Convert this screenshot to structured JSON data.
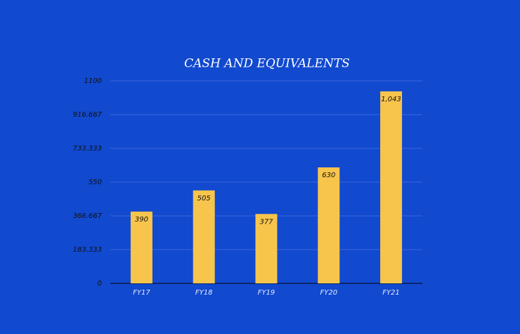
{
  "chart_data": {
    "type": "bar",
    "title": "CASH AND EQUIVALENTS",
    "categories": [
      "FY17",
      "FY18",
      "FY19",
      "FY20",
      "FY21"
    ],
    "values": [
      390,
      505,
      377,
      630,
      1043
    ],
    "value_labels": [
      "390",
      "505",
      "377",
      "630",
      "1,043"
    ],
    "color": "#f7c44c",
    "ylim": [
      0,
      1100
    ],
    "yticks": [
      0,
      183.333,
      366.667,
      550,
      733.333,
      916.667,
      1100
    ],
    "grid": true
  }
}
